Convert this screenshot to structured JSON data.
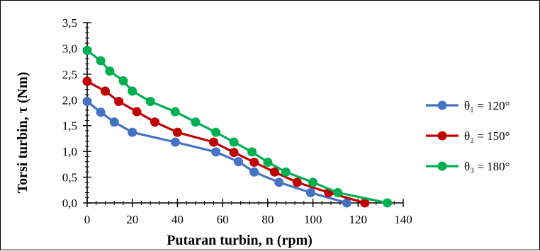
{
  "chart_data": {
    "type": "line",
    "title": "",
    "xlabel": "Putaran turbin, n (rpm)",
    "ylabel": "Torsi turbin, τ (Nm)",
    "xlim": [
      0,
      140
    ],
    "ylim": [
      0,
      3.5
    ],
    "x_ticks": [
      "0",
      "20",
      "40",
      "60",
      "80",
      "100",
      "120",
      "140"
    ],
    "y_ticks": [
      "0,0",
      "0,5",
      "1,0",
      "1,5",
      "2,0",
      "2,5",
      "3,0",
      "3,5"
    ],
    "grid": false,
    "legend_position": "right",
    "series": [
      {
        "name": "θ₁ = 120°",
        "color": "#4472C4",
        "x": [
          0,
          6,
          12,
          20,
          39,
          57,
          67,
          74,
          85,
          99,
          115
        ],
        "y": [
          1.97,
          1.76,
          1.57,
          1.37,
          1.18,
          0.99,
          0.8,
          0.6,
          0.4,
          0.2,
          0.0
        ]
      },
      {
        "name": "θ₂ = 150°",
        "color": "#C00000",
        "x": [
          0,
          8,
          14,
          22,
          30,
          40,
          56,
          65,
          74,
          83,
          93,
          107,
          123
        ],
        "y": [
          2.36,
          2.17,
          1.97,
          1.77,
          1.57,
          1.37,
          1.18,
          0.98,
          0.79,
          0.6,
          0.4,
          0.2,
          0.0
        ]
      },
      {
        "name": "θ₃ = 180°",
        "color": "#00B050",
        "x": [
          0,
          6,
          10,
          16,
          20,
          28,
          39,
          48,
          57,
          65,
          73,
          80,
          88,
          100,
          111,
          133
        ],
        "y": [
          2.96,
          2.76,
          2.56,
          2.37,
          2.17,
          1.97,
          1.77,
          1.57,
          1.37,
          1.18,
          0.99,
          0.79,
          0.6,
          0.4,
          0.2,
          0.0
        ]
      }
    ]
  }
}
